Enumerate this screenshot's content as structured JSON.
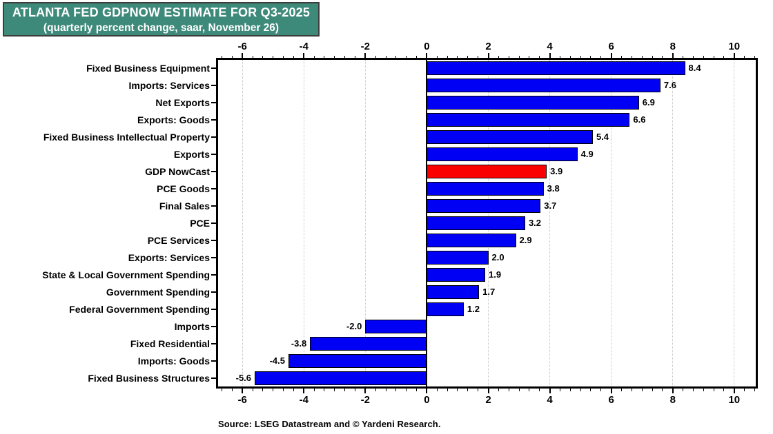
{
  "title": {
    "line1": "ATLANTA FED GDPNOW ESTIMATE FOR Q3-2025",
    "line2": "(quarterly percent change, saar, November 26)"
  },
  "source": "Source: LSEG Datastream and © Yardeni Research.",
  "colors": {
    "title_bg": "#3E8A7A",
    "title_text": "#FFFFFF",
    "title_border": "#3D3D3D",
    "bar_blue": "#0000F5",
    "bar_red": "#FB0000",
    "bar_border": "#000000",
    "grid": "#C4C4C4",
    "axis": "#000000",
    "background": "#FFFFFF"
  },
  "chart_data": {
    "type": "bar",
    "orientation": "horizontal",
    "title": "ATLANTA FED GDPNOW ESTIMATE FOR Q3-2025 (quarterly percent change, saar, November 26)",
    "categories": [
      "Fixed Business Equipment",
      "Imports: Services",
      "Net Exports",
      "Exports: Goods",
      "Fixed Business Intellectual Property",
      "Exports",
      "GDP NowCast",
      "PCE Goods",
      "Final Sales",
      "PCE",
      "PCE Services",
      "Exports: Services",
      "State & Local Government Spending",
      "Government Spending",
      "Federal Government Spending",
      "Imports",
      "Fixed Residential",
      "Imports: Goods",
      "Fixed Business Structures"
    ],
    "values": [
      8.4,
      7.6,
      6.9,
      6.6,
      5.4,
      4.9,
      3.9,
      3.8,
      3.7,
      3.2,
      2.9,
      2.0,
      1.9,
      1.7,
      1.2,
      -2.0,
      -3.8,
      -4.5,
      -5.6
    ],
    "highlight": {
      "category": "GDP NowCast",
      "color_key": "bar_red"
    },
    "default_color_key": "bar_blue",
    "xlim": [
      -6.79,
      10.7
    ],
    "x_major_ticks": [
      -6,
      -4,
      -2,
      0,
      2,
      4,
      6,
      8,
      10
    ],
    "x_tick_labels": [
      "-6",
      "-4",
      "-2",
      "0",
      "2",
      "4",
      "6",
      "8",
      "10"
    ],
    "x_minor_step": 0.33333,
    "grid": "vertical dotted at major ticks except zero",
    "legend": "none",
    "value_label_format": "one-decimal, bold, outside bar end"
  }
}
